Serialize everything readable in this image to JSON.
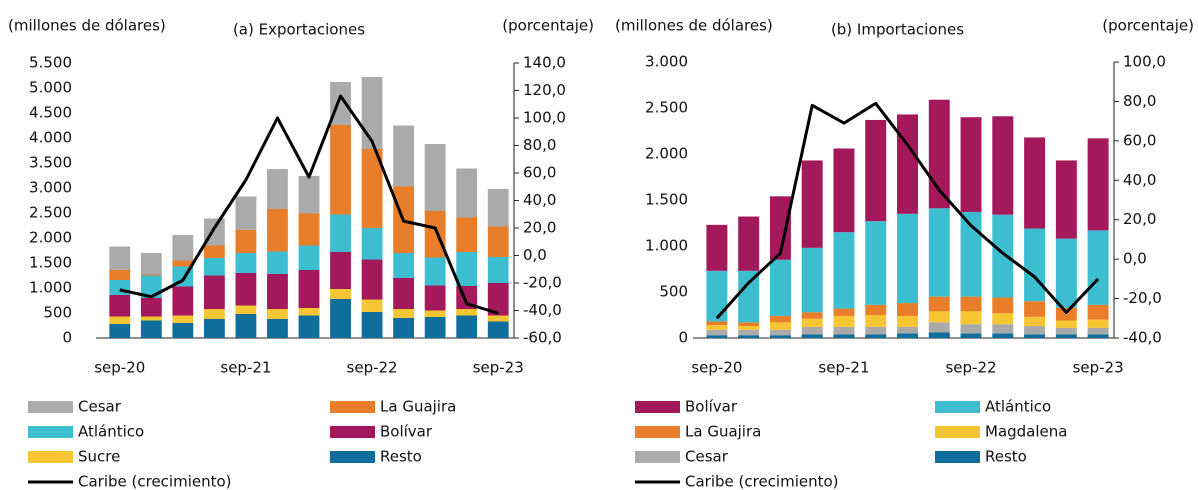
{
  "chart_data": [
    {
      "type": "bar",
      "stacked": true,
      "title": "(a) Exportaciones",
      "y_label": "(millones de dólares)",
      "y2_label": "(porcentaje)",
      "categories": [
        "sep-20",
        null,
        null,
        null,
        "sep-21",
        null,
        null,
        null,
        "sep-22",
        null,
        null,
        null,
        "sep-23"
      ],
      "ylim": [
        0,
        5500
      ],
      "yticks": [
        0,
        500,
        {
          "value": 1000,
          "label": "1.000"
        },
        {
          "value": 1500,
          "label": "1.500"
        },
        {
          "value": 2000,
          "label": "2.000"
        },
        {
          "value": 2500,
          "label": "2.500"
        },
        {
          "value": 3000,
          "label": "3.000"
        },
        {
          "value": 3500,
          "label": "3.500"
        },
        {
          "value": 4000,
          "label": "4.000"
        },
        {
          "value": 4500,
          "label": "4.500"
        },
        {
          "value": 5000,
          "label": "5.000"
        },
        {
          "value": 5500,
          "label": "5.500"
        }
      ],
      "y2lim": [
        -60,
        140
      ],
      "y2ticks": [
        {
          "value": -60,
          "label": "-60,0"
        },
        {
          "value": -40,
          "label": "-40,0"
        },
        {
          "value": -20,
          "label": "-20,0"
        },
        {
          "value": 0,
          "label": "0,0"
        },
        {
          "value": 20,
          "label": "20,0"
        },
        {
          "value": 40,
          "label": "40,0"
        },
        {
          "value": 60,
          "label": "60,0"
        },
        {
          "value": 80,
          "label": "80,0"
        },
        {
          "value": 100,
          "label": "100,0"
        },
        {
          "value": 120,
          "label": "120,0"
        },
        {
          "value": 140,
          "label": "140,0"
        }
      ],
      "series": [
        {
          "name": "Cesar",
          "color": "#aaaaaa",
          "values": [
            470,
            430,
            510,
            540,
            670,
            800,
            750,
            860,
            1440,
            1220,
            1340,
            980,
            750
          ]
        },
        {
          "name": "La Guajira",
          "color": "#e87e2a",
          "values": [
            200,
            20,
            120,
            250,
            460,
            850,
            640,
            1790,
            1580,
            1330,
            930,
            690,
            610
          ]
        },
        {
          "name": "Atlántico",
          "color": "#3dbdd0",
          "values": [
            300,
            450,
            400,
            350,
            400,
            450,
            490,
            750,
            630,
            500,
            560,
            680,
            520
          ]
        },
        {
          "name": "Bolívar",
          "color": "#a3195b",
          "values": [
            430,
            370,
            580,
            670,
            650,
            700,
            760,
            740,
            800,
            620,
            500,
            460,
            650
          ]
        },
        {
          "name": "Sucre",
          "color": "#f6c533",
          "values": [
            150,
            80,
            150,
            200,
            170,
            200,
            150,
            200,
            250,
            180,
            130,
            130,
            120
          ]
        },
        {
          "name": "Resto",
          "color": "#0f6e9b",
          "values": [
            280,
            350,
            300,
            380,
            480,
            380,
            450,
            780,
            520,
            400,
            420,
            450,
            330
          ]
        },
        {
          "name": "Caribe (crecimiento)",
          "type": "line",
          "axis": "y2",
          "color": "#000000",
          "values": [
            -25,
            -30,
            -18,
            20,
            55,
            100,
            57,
            116,
            83,
            25,
            20,
            -35,
            -42
          ]
        }
      ]
    },
    {
      "type": "bar",
      "stacked": true,
      "title": "(b) Importaciones",
      "y_label": "(millones de dólares)",
      "y2_label": "(porcentaje)",
      "categories": [
        "sep-20",
        null,
        null,
        null,
        "sep-21",
        null,
        null,
        null,
        "sep-22",
        null,
        null,
        null,
        "sep-23"
      ],
      "ylim": [
        0,
        3000
      ],
      "yticks": [
        0,
        500,
        {
          "value": 1000,
          "label": "1.000"
        },
        {
          "value": 1500,
          "label": "1.500"
        },
        {
          "value": 2000,
          "label": "2.000"
        },
        {
          "value": 2500,
          "label": "2.500"
        },
        {
          "value": 3000,
          "label": "3.000"
        }
      ],
      "y2lim": [
        -40,
        100
      ],
      "y2ticks": [
        {
          "value": -40,
          "label": "-40,0"
        },
        {
          "value": -20,
          "label": "-20,0"
        },
        {
          "value": 0,
          "label": "0,0"
        },
        {
          "value": 20,
          "label": "20,0"
        },
        {
          "value": 40,
          "label": "40,0"
        },
        {
          "value": 60,
          "label": "60,0"
        },
        {
          "value": 80,
          "label": "80,0"
        },
        {
          "value": 100,
          "label": "100,0"
        }
      ],
      "series": [
        {
          "name": "Bolívar",
          "color": "#a3195b",
          "values": [
            500,
            590,
            690,
            950,
            910,
            1100,
            1080,
            1180,
            1030,
            1070,
            990,
            850,
            1000
          ]
        },
        {
          "name": "Atlántico",
          "color": "#3dbdd0",
          "values": [
            550,
            560,
            610,
            700,
            830,
            910,
            970,
            960,
            920,
            900,
            790,
            750,
            810
          ]
        },
        {
          "name": "La Guajira",
          "color": "#e87e2a",
          "values": [
            40,
            40,
            70,
            70,
            80,
            110,
            140,
            160,
            160,
            170,
            170,
            140,
            160
          ]
        },
        {
          "name": "Magdalena",
          "color": "#f6c533",
          "values": [
            50,
            40,
            80,
            90,
            120,
            130,
            120,
            120,
            140,
            120,
            100,
            80,
            90
          ]
        },
        {
          "name": "Cesar",
          "color": "#aaaaaa",
          "values": [
            60,
            60,
            60,
            80,
            80,
            80,
            70,
            110,
            100,
            100,
            90,
            70,
            70
          ]
        },
        {
          "name": "Resto",
          "color": "#0f6e9b",
          "values": [
            30,
            30,
            30,
            40,
            40,
            40,
            50,
            60,
            50,
            50,
            40,
            40,
            40
          ]
        },
        {
          "name": "Caribe (crecimiento)",
          "type": "line",
          "axis": "y2",
          "color": "#000000",
          "values": [
            -30,
            -12,
            3,
            78,
            69,
            79,
            58,
            35,
            17,
            3,
            -9,
            -27,
            -10
          ]
        }
      ]
    }
  ]
}
